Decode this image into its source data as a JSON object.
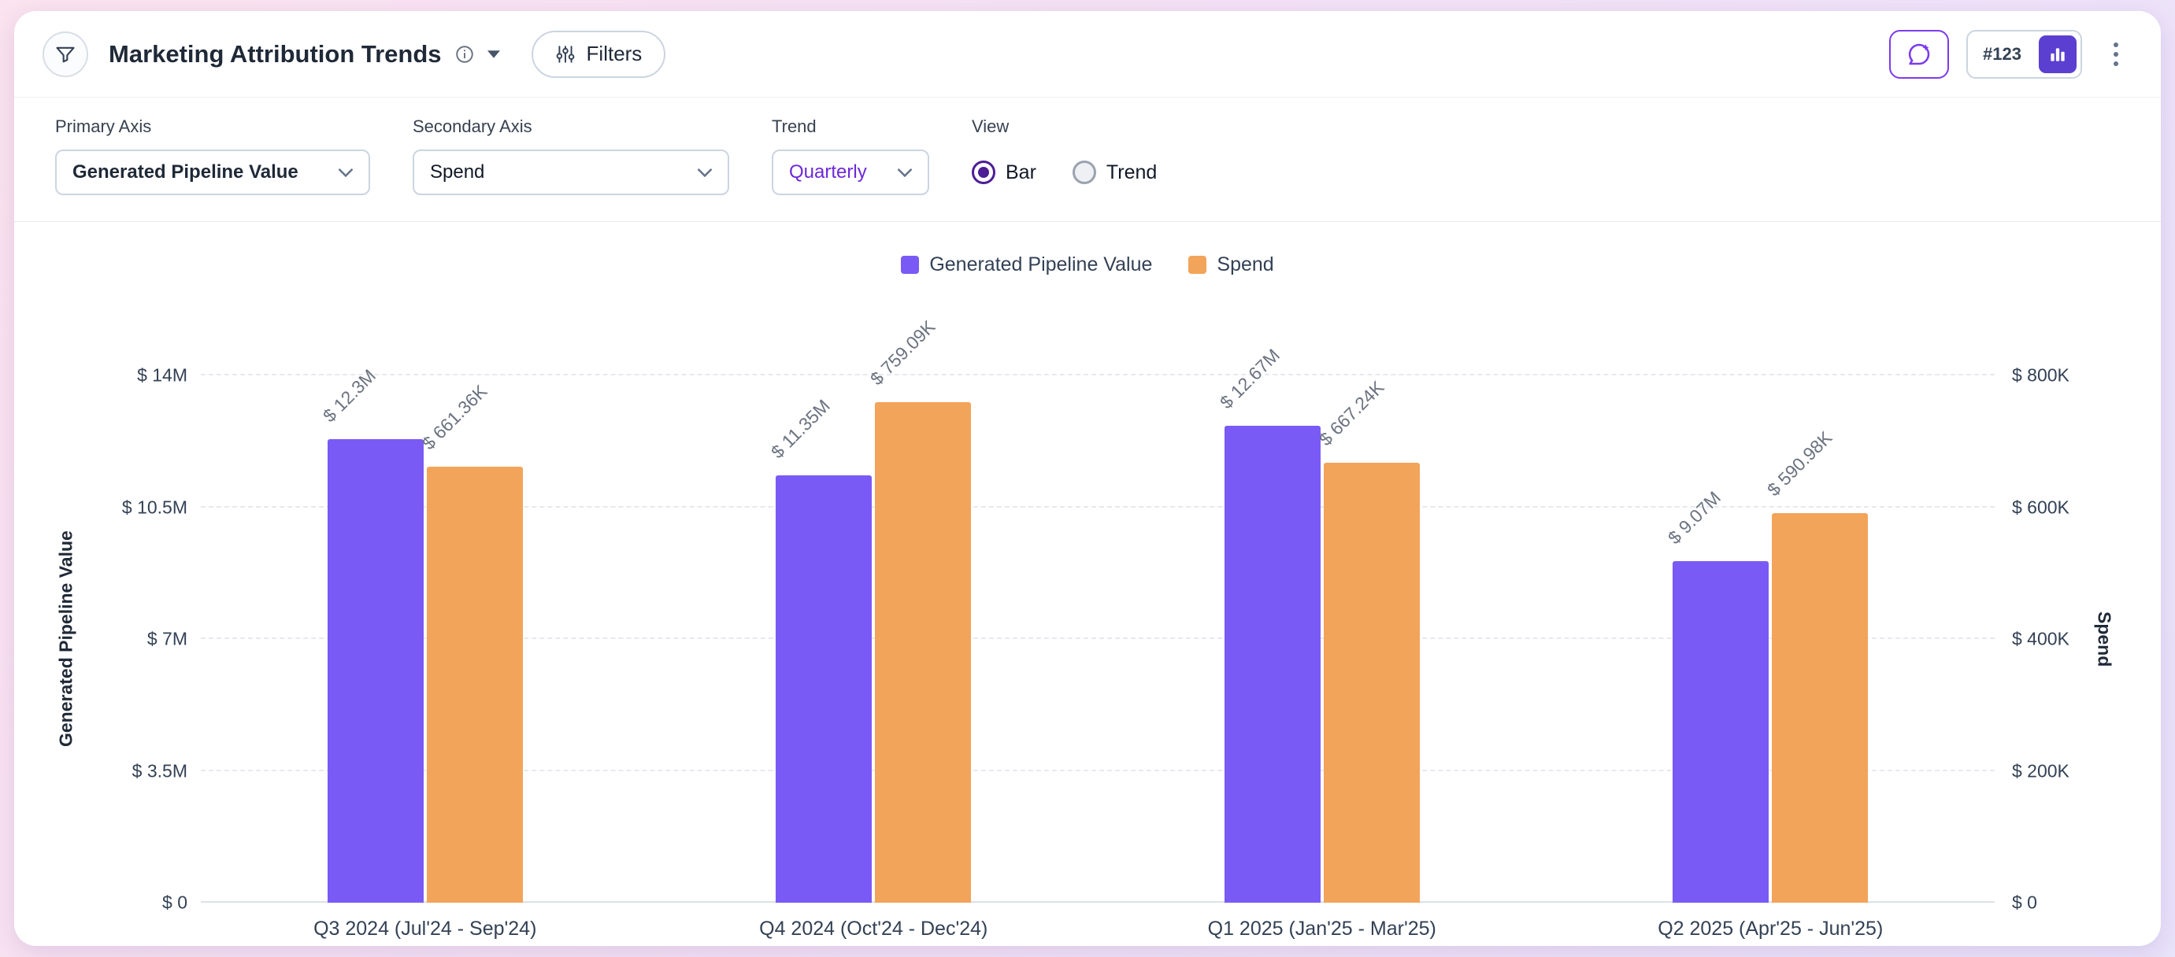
{
  "header": {
    "title": "Marketing Attribution Trends",
    "filters_label": "Filters",
    "widget_number": "#123"
  },
  "controls": {
    "primary_axis": {
      "label": "Primary Axis",
      "value": "Generated Pipeline Value"
    },
    "secondary_axis": {
      "label": "Secondary Axis",
      "value": "Spend"
    },
    "trend": {
      "label": "Trend",
      "value": "Quarterly"
    },
    "view": {
      "label": "View",
      "options": [
        {
          "label": "Bar",
          "selected": true
        },
        {
          "label": "Trend",
          "selected": false
        }
      ]
    }
  },
  "colors": {
    "primary_bar": "#7A5AF5",
    "secondary_bar": "#F2A45A",
    "accent": "#7C3AED"
  },
  "icons": {
    "header": "funnel-icon",
    "filters": "sliders-icon",
    "title_info": "info-icon",
    "title_caret": "caret-down-icon",
    "ai": "chat-sparkle-icon",
    "chart_type": "bar-chart-icon",
    "menu": "kebab-menu-icon"
  },
  "chart_data": {
    "type": "bar",
    "categories": [
      "Q3 2024 (Jul'24 - Sep'24)",
      "Q4 2024 (Oct'24 - Dec'24)",
      "Q1 2025 (Jan'25 - Mar'25)",
      "Q2 2025 (Apr'25 - Jun'25)"
    ],
    "series": [
      {
        "name": "Generated Pipeline Value",
        "axis": "left",
        "color": "#7A5AF5",
        "values": [
          12300000,
          11350000,
          12670000,
          9070000
        ],
        "labels": [
          "$ 12.3M",
          "$ 11.35M",
          "$ 12.67M",
          "$ 9.07M"
        ]
      },
      {
        "name": "Spend",
        "axis": "right",
        "color": "#F2A45A",
        "values": [
          661360,
          759090,
          667240,
          590980
        ],
        "labels": [
          "$ 661.36K",
          "$ 759.09K",
          "$ 667.24K",
          "$ 590.98K"
        ]
      }
    ],
    "left_axis": {
      "title": "Generated Pipeline Value",
      "max": 14000000,
      "ticks": [
        "$ 0",
        "$ 3.5M",
        "$ 7M",
        "$ 10.5M",
        "$ 14M"
      ]
    },
    "right_axis": {
      "title": "Spend",
      "max": 800000,
      "ticks": [
        "$ 0",
        "$ 200K",
        "$ 400K",
        "$ 600K",
        "$ 800K"
      ]
    },
    "legend": [
      "Generated Pipeline Value",
      "Spend"
    ],
    "legend_position": "top-center",
    "grid": true
  }
}
